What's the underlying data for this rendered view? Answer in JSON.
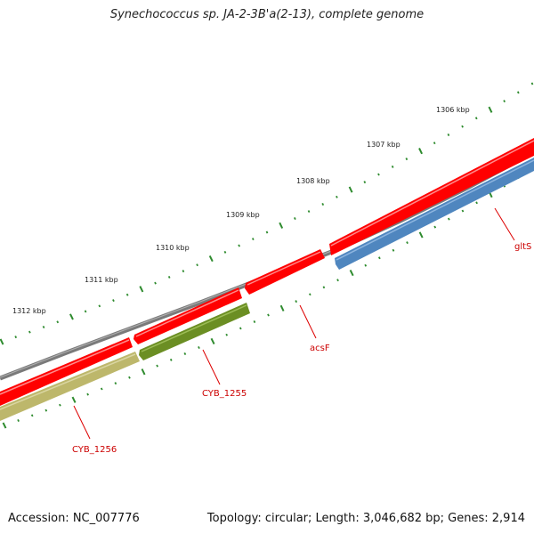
{
  "title": "Synechococcus sp. JA-2-3B'a(2-13), complete genome",
  "footer": {
    "accession": "Accession: NC_007776",
    "summary": "Topology: circular; Length: 3,046,682 bp; Genes: 2,914"
  },
  "scale_labels": [
    "1306 kbp",
    "1307 kbp",
    "1308 kbp",
    "1309 kbp",
    "1310 kbp",
    "1311 kbp",
    "1312 kbp"
  ],
  "genes": [
    {
      "name": "gltS",
      "track": "forward",
      "type": "CDS",
      "color": "#ff0000",
      "direction": "forward"
    },
    {
      "name": "gltS",
      "track": "reverse",
      "type": "CDS",
      "color": "#4f86bf",
      "direction": "reverse"
    },
    {
      "name": "acsF",
      "track": "forward",
      "type": "CDS",
      "color": "#ff0000",
      "direction": "reverse"
    },
    {
      "name": "CYB_1255",
      "track": "forward",
      "type": "CDS",
      "color": "#ff0000",
      "direction": "reverse"
    },
    {
      "name": "CYB_1255",
      "track": "reverse",
      "type": "CDS",
      "color": "#6b8e23",
      "direction": "reverse"
    },
    {
      "name": "CYB_1256",
      "track": "forward",
      "type": "CDS",
      "color": "#ff0000",
      "direction": "reverse"
    },
    {
      "name": "CYB_1256",
      "track": "reverse",
      "type": "CDS",
      "color": "#bdb76b",
      "direction": "reverse"
    }
  ],
  "gene_labels": [
    "gltS",
    "acsF",
    "CYB_1255",
    "CYB_1256"
  ],
  "colors": {
    "backbone": "#7a7a7a",
    "tick": "#2e8b2e",
    "label": "#cc0000"
  }
}
